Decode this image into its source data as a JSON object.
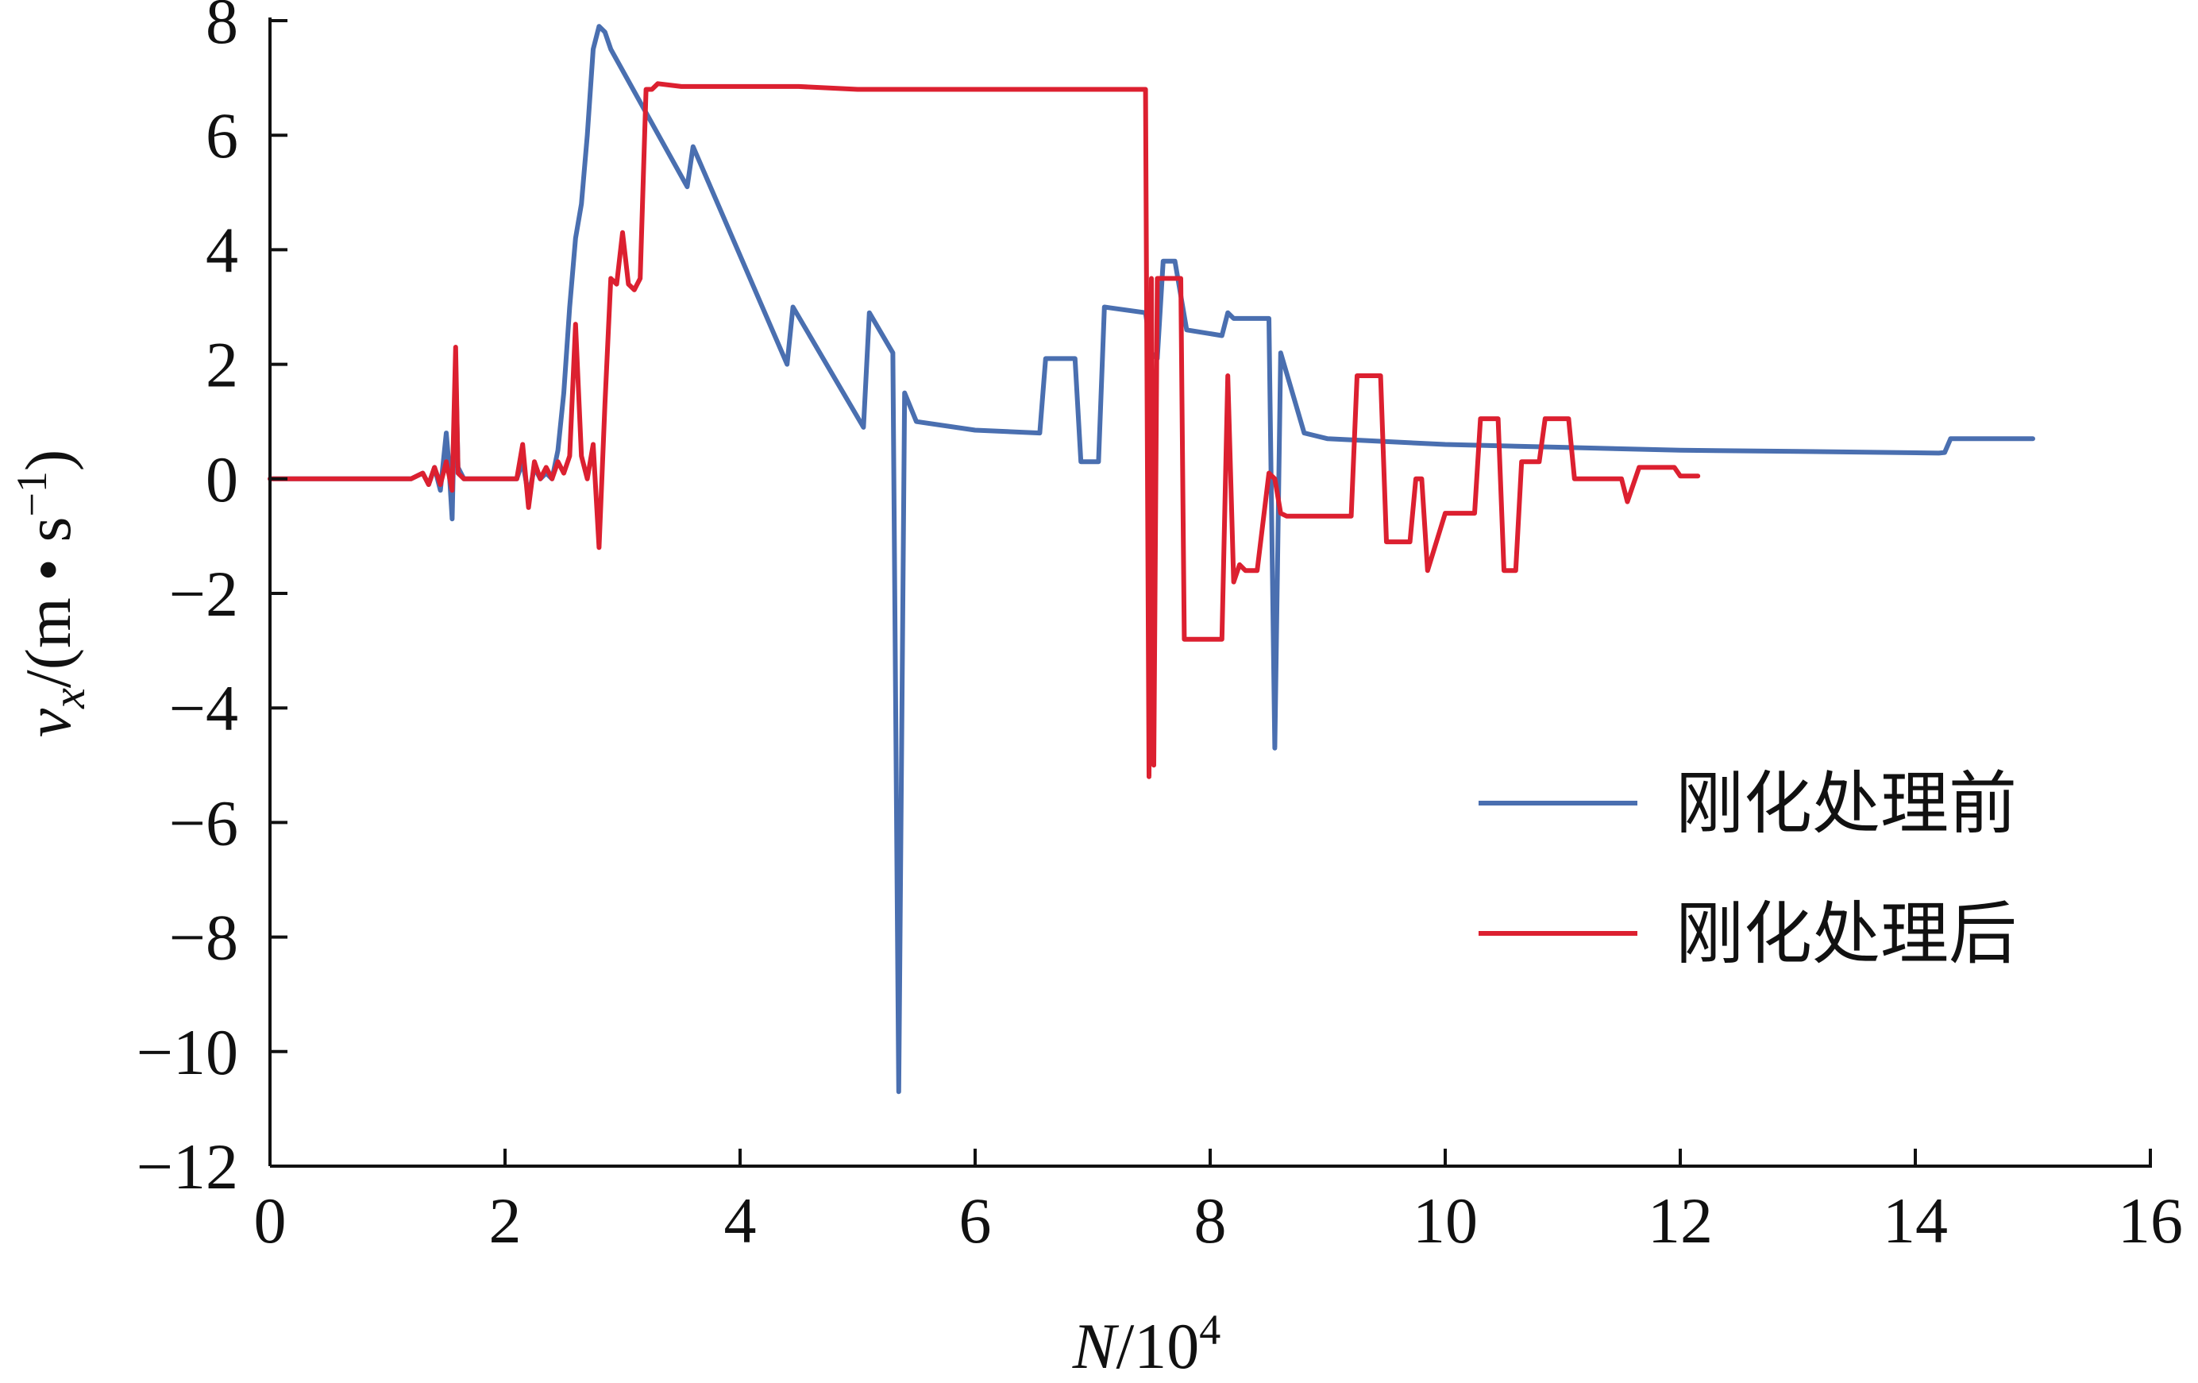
{
  "chart_data": {
    "type": "line",
    "title": "",
    "xlabel": {
      "var": "N",
      "suffix": "/10",
      "sup": "4"
    },
    "ylabel": {
      "var": "v",
      "sub": "x",
      "unit_open": "/(m • s",
      "unit_sup": "−1",
      "unit_close": ")"
    },
    "xlim": [
      0,
      16
    ],
    "ylim": [
      -12,
      8
    ],
    "x_ticks": [
      0,
      2,
      4,
      6,
      8,
      10,
      12,
      14,
      16
    ],
    "x_tick_labels": [
      "0",
      "2",
      "4",
      "6",
      "8",
      "10",
      "12",
      "14",
      "16"
    ],
    "y_ticks": [
      8,
      6,
      4,
      2,
      0,
      -2,
      -4,
      -6,
      -8,
      -10,
      -12
    ],
    "y_tick_labels": [
      "8",
      "6",
      "4",
      "2",
      "0",
      "−2",
      "−4",
      "−6",
      "−8",
      "−10",
      "−12"
    ],
    "grid": false,
    "legend_position": "bottom-right",
    "series": [
      {
        "name": "刚化处理前",
        "color": "#4a6fb0",
        "x": [
          0,
          1.2,
          1.3,
          1.35,
          1.4,
          1.45,
          1.5,
          1.52,
          1.55,
          1.58,
          1.6,
          1.65,
          1.7,
          1.8,
          2.0,
          2.1,
          2.15,
          2.2,
          2.25,
          2.3,
          2.35,
          2.4,
          2.45,
          2.5,
          2.55,
          2.6,
          2.65,
          2.7,
          2.75,
          2.8,
          2.85,
          2.9,
          3.55,
          3.6,
          4.4,
          4.45,
          5.05,
          5.1,
          5.3,
          5.35,
          5.4,
          5.5,
          6.0,
          6.55,
          6.6,
          6.85,
          6.9,
          7.05,
          7.1,
          7.45,
          7.5,
          7.55,
          7.6,
          7.7,
          7.8,
          8.1,
          8.15,
          8.2,
          8.5,
          8.55,
          8.6,
          8.7,
          8.8,
          9.0,
          10.0,
          11.0,
          12.0,
          13.0,
          14.2,
          14.25,
          14.3,
          15.0
        ],
        "values": [
          0,
          0,
          0.1,
          -0.1,
          0.2,
          -0.2,
          0.8,
          0.3,
          -0.7,
          2.0,
          0.2,
          0,
          0,
          0,
          0,
          0,
          0.3,
          -0.3,
          0.2,
          0,
          0.1,
          0,
          0.5,
          1.5,
          3.0,
          4.2,
          4.8,
          6.0,
          7.5,
          7.9,
          7.8,
          7.5,
          5.1,
          5.8,
          2.0,
          3.0,
          0.9,
          2.9,
          2.2,
          -10.7,
          1.5,
          1.0,
          0.85,
          0.8,
          2.1,
          2.1,
          0.3,
          0.3,
          3.0,
          2.9,
          2.2,
          2.1,
          3.8,
          3.8,
          2.6,
          2.5,
          2.9,
          2.8,
          2.8,
          -4.7,
          2.2,
          1.5,
          0.8,
          0.7,
          0.6,
          0.55,
          0.5,
          0.48,
          0.45,
          0.46,
          0.7,
          0.7
        ]
      },
      {
        "name": "刚化处理后",
        "color": "#dc2030",
        "x": [
          0,
          1.2,
          1.3,
          1.35,
          1.4,
          1.45,
          1.5,
          1.55,
          1.58,
          1.6,
          1.65,
          1.7,
          1.8,
          2.0,
          2.1,
          2.15,
          2.2,
          2.25,
          2.3,
          2.35,
          2.4,
          2.45,
          2.5,
          2.55,
          2.6,
          2.65,
          2.7,
          2.75,
          2.8,
          2.85,
          2.9,
          2.95,
          3.0,
          3.05,
          3.1,
          3.15,
          3.2,
          3.25,
          3.3,
          3.5,
          4.5,
          5.0,
          6.0,
          7.0,
          7.45,
          7.48,
          7.5,
          7.52,
          7.55,
          7.75,
          7.78,
          7.8,
          8.1,
          8.15,
          8.2,
          8.25,
          8.3,
          8.4,
          8.5,
          8.55,
          8.6,
          8.65,
          9.2,
          9.25,
          9.45,
          9.5,
          9.7,
          9.75,
          9.8,
          9.85,
          10.0,
          10.05,
          10.25,
          10.3,
          10.45,
          10.5,
          10.6,
          10.65,
          10.8,
          10.85,
          11.05,
          11.1,
          11.5,
          11.55,
          11.65,
          11.7,
          11.95,
          12.0,
          12.15
        ],
        "values": [
          0,
          0,
          0.1,
          -0.1,
          0.2,
          -0.1,
          0.3,
          -0.2,
          2.3,
          0.1,
          0,
          0,
          0,
          0,
          0,
          0.6,
          -0.5,
          0.3,
          0,
          0.2,
          0,
          0.3,
          0.1,
          0.4,
          2.7,
          0.4,
          0,
          0.6,
          -1.2,
          1.3,
          3.5,
          3.4,
          4.3,
          3.4,
          3.3,
          3.5,
          6.8,
          6.8,
          6.9,
          6.85,
          6.85,
          6.8,
          6.8,
          6.8,
          6.8,
          -5.2,
          3.5,
          -5.0,
          3.5,
          3.5,
          -2.8,
          -2.8,
          -2.8,
          1.8,
          -1.8,
          -1.5,
          -1.6,
          -1.6,
          0.1,
          0,
          -0.6,
          -0.65,
          -0.65,
          1.8,
          1.8,
          -1.1,
          -1.1,
          0,
          0,
          -1.6,
          -0.6,
          -0.6,
          -0.6,
          1.05,
          1.05,
          -1.6,
          -1.6,
          0.3,
          0.3,
          1.05,
          1.05,
          0,
          0,
          -0.4,
          0.2,
          0.2,
          0.2,
          0.05,
          0.05
        ]
      }
    ]
  }
}
